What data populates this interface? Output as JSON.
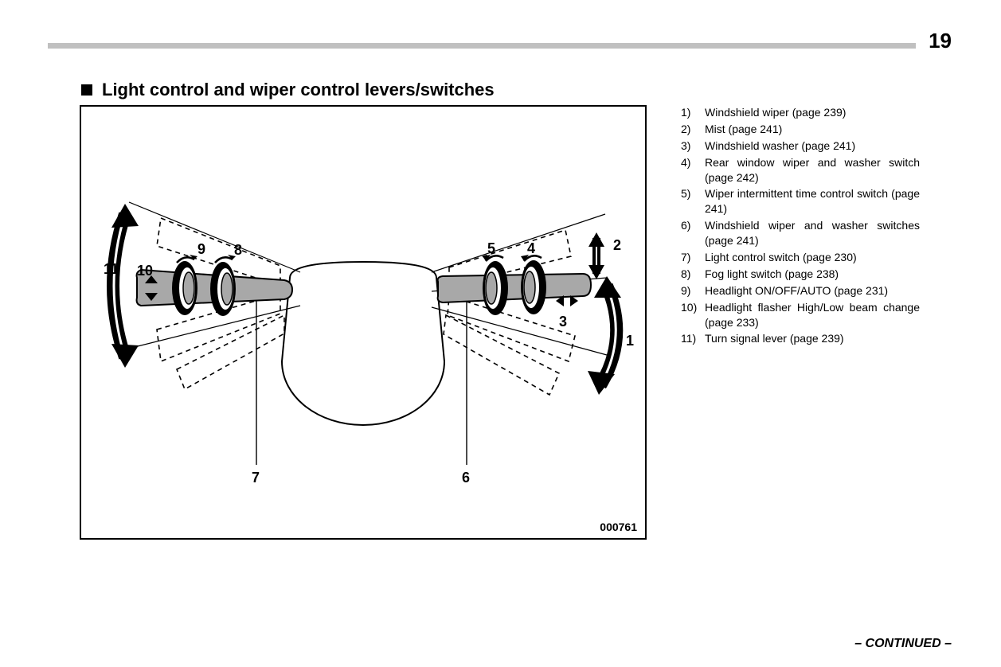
{
  "page_number": "19",
  "heading": "Light control and wiper control levers/switches",
  "figure_id": "000761",
  "continued_label": "– CONTINUED –",
  "colors": {
    "page_bg": "#ffffff",
    "rule_gray": "#c0c0c0",
    "text": "#000000",
    "lever_fill": "#a8a8a8",
    "ring_dark": "#000000",
    "ring_hilite": "#ffffff"
  },
  "legend": [
    {
      "n": "1)",
      "text": "Windshield wiper (page 239)"
    },
    {
      "n": "2)",
      "text": "Mist (page 241)"
    },
    {
      "n": "3)",
      "text": "Windshield washer (page 241)"
    },
    {
      "n": "4)",
      "text": "Rear window wiper and washer switch (page 242)"
    },
    {
      "n": "5)",
      "text": "Wiper intermittent time control switch (page 241)"
    },
    {
      "n": "6)",
      "text": "Windshield wiper and washer switches (page 241)"
    },
    {
      "n": "7)",
      "text": "Light control switch (page 230)"
    },
    {
      "n": "8)",
      "text": "Fog light switch (page 238)"
    },
    {
      "n": "9)",
      "text": "Headlight ON/OFF/AUTO (page 231)"
    },
    {
      "n": "10)",
      "text": "Headlight flasher High/Low beam change (page 233)"
    },
    {
      "n": "11)",
      "text": "Turn signal lever (page 239)"
    }
  ],
  "callouts": {
    "c1": "1",
    "c2": "2",
    "c3": "3",
    "c4": "4",
    "c5": "5",
    "c6": "6",
    "c7": "7",
    "c8": "8",
    "c9": "9",
    "c10": "10",
    "c11": "11"
  }
}
